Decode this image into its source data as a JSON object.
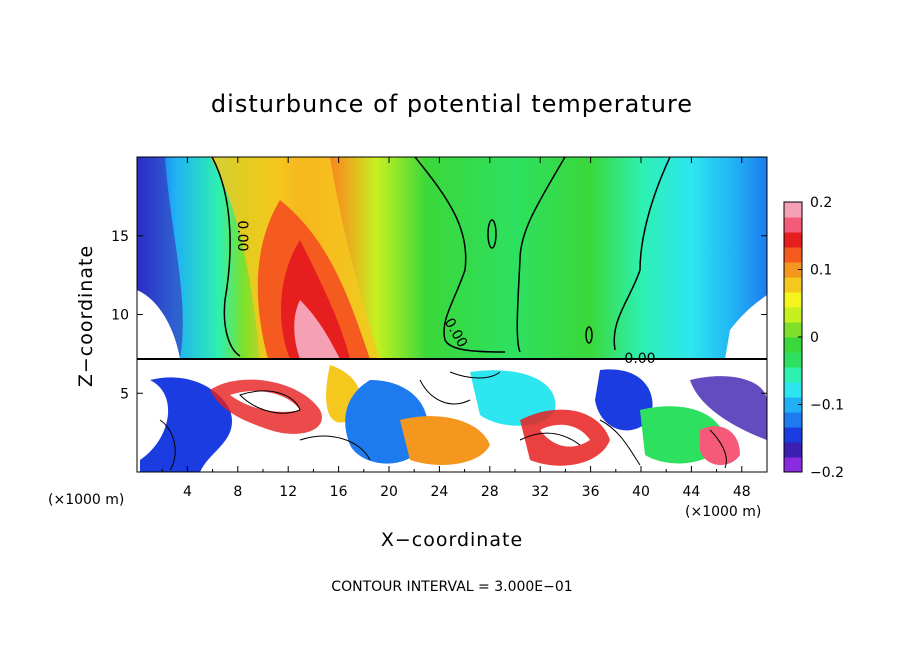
{
  "chart_data": {
    "type": "heatmap",
    "title": "disturbunce of potential temperature",
    "xlabel": "X−coordinate",
    "ylabel": "Z−coordinate",
    "x_unit": "(×1000 m)",
    "y_unit": "(×1000 m)",
    "xlim": [
      0,
      50
    ],
    "ylim": [
      0,
      20
    ],
    "x_ticks": [
      "4",
      "8",
      "12",
      "16",
      "20",
      "24",
      "28",
      "32",
      "36",
      "40",
      "44",
      "48"
    ],
    "y_ticks": [
      "5",
      "10",
      "15"
    ],
    "colorbar": {
      "min": -0.2,
      "max": 0.2,
      "ticks": [
        "0.2",
        "0.1",
        "0",
        "−0.1",
        "−0.2"
      ],
      "colors": [
        "#8a2be2",
        "#3b1fb0",
        "#1a3ce0",
        "#1e7bef",
        "#20b0f5",
        "#2ee6f0",
        "#2ef0b0",
        "#2ee060",
        "#3ad83a",
        "#7ee02a",
        "#c8f020",
        "#f5f51e",
        "#f5c81e",
        "#f5961e",
        "#f55a1e",
        "#e61e1e",
        "#f55a78",
        "#f5a0b4"
      ]
    },
    "contour_labels": [
      "0.00",
      "0.00",
      "0.00"
    ],
    "contour_interval_text": "CONTOUR INTERVAL =  3.000E−01"
  }
}
